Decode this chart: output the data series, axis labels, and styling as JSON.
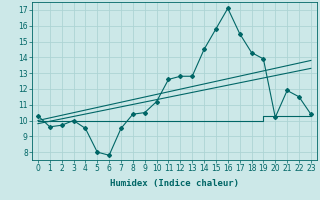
{
  "xlabel": "Humidex (Indice chaleur)",
  "xlim": [
    -0.5,
    23.5
  ],
  "ylim": [
    7.5,
    17.5
  ],
  "xticks": [
    0,
    1,
    2,
    3,
    4,
    5,
    6,
    7,
    8,
    9,
    10,
    11,
    12,
    13,
    14,
    15,
    16,
    17,
    18,
    19,
    20,
    21,
    22,
    23
  ],
  "yticks": [
    8,
    9,
    10,
    11,
    12,
    13,
    14,
    15,
    16,
    17
  ],
  "bg_color": "#cce8e8",
  "line_color": "#006666",
  "grid_color": "#add4d4",
  "line1_x": [
    0,
    1,
    2,
    3,
    4,
    5,
    6,
    7,
    8,
    9,
    10,
    11,
    12,
    13,
    14,
    15,
    16,
    17,
    18,
    19,
    20,
    21,
    22,
    23
  ],
  "line1_y": [
    10.3,
    9.6,
    9.7,
    10.0,
    9.5,
    8.0,
    7.8,
    9.5,
    10.4,
    10.5,
    11.2,
    12.6,
    12.8,
    12.8,
    14.5,
    15.8,
    17.1,
    15.5,
    14.3,
    13.9,
    10.2,
    11.9,
    11.5,
    10.4
  ],
  "line2_x": [
    0,
    23
  ],
  "line2_y": [
    10.0,
    13.8
  ],
  "line3_x": [
    0,
    23
  ],
  "line3_y": [
    9.8,
    13.3
  ],
  "line4_x": [
    0,
    15,
    15,
    19,
    19,
    23
  ],
  "line4_y": [
    10.0,
    10.0,
    10.0,
    10.0,
    10.3,
    10.3
  ]
}
